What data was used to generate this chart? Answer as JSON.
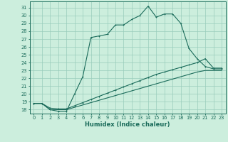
{
  "title": "",
  "xlabel": "Humidex (Indice chaleur)",
  "bg_color": "#cceedd",
  "grid_color": "#99ccbb",
  "line_color": "#1a6b5a",
  "xlim": [
    -0.5,
    23.5
  ],
  "ylim": [
    17.5,
    31.8
  ],
  "xticks": [
    0,
    1,
    2,
    3,
    4,
    5,
    6,
    7,
    8,
    9,
    10,
    11,
    12,
    13,
    14,
    15,
    16,
    17,
    18,
    19,
    20,
    21,
    22,
    23
  ],
  "yticks": [
    18,
    19,
    20,
    21,
    22,
    23,
    24,
    25,
    26,
    27,
    28,
    29,
    30,
    31
  ],
  "series1_x": [
    0,
    1,
    2,
    3,
    4,
    5,
    6,
    7,
    8,
    9,
    10,
    11,
    12,
    13,
    14,
    15,
    16,
    17,
    18,
    19,
    20,
    21,
    22,
    23
  ],
  "series1_y": [
    18.8,
    18.8,
    18.0,
    17.8,
    17.8,
    20.0,
    22.2,
    27.2,
    27.4,
    27.6,
    28.8,
    28.8,
    29.5,
    30.0,
    31.2,
    29.8,
    30.2,
    30.2,
    29.0,
    25.8,
    24.5,
    23.5,
    23.2,
    23.2
  ],
  "series2_x": [
    0,
    1,
    2,
    3,
    4,
    5,
    6,
    7,
    8,
    9,
    10,
    11,
    12,
    13,
    14,
    15,
    16,
    17,
    18,
    19,
    20,
    21,
    22,
    23
  ],
  "series2_y": [
    18.8,
    18.8,
    18.2,
    18.1,
    18.1,
    18.5,
    18.9,
    19.3,
    19.7,
    20.1,
    20.5,
    20.9,
    21.3,
    21.7,
    22.1,
    22.5,
    22.8,
    23.1,
    23.4,
    23.7,
    24.0,
    24.5,
    23.3,
    23.3
  ],
  "series3_x": [
    0,
    1,
    2,
    3,
    4,
    5,
    6,
    7,
    8,
    9,
    10,
    11,
    12,
    13,
    14,
    15,
    16,
    17,
    18,
    19,
    20,
    21,
    22,
    23
  ],
  "series3_y": [
    18.8,
    18.8,
    18.0,
    18.0,
    18.0,
    18.3,
    18.6,
    18.9,
    19.2,
    19.5,
    19.8,
    20.1,
    20.4,
    20.7,
    21.0,
    21.3,
    21.6,
    21.9,
    22.2,
    22.5,
    22.8,
    23.0,
    23.0,
    23.0
  ]
}
